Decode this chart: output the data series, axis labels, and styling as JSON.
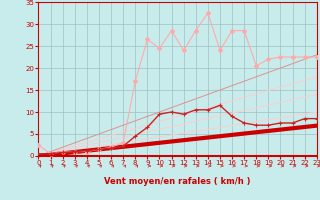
{
  "background_color": "#c8ecec",
  "grid_color": "#a0c0c0",
  "xlabel": "Vent moyen/en rafales ( km/h )",
  "xlim": [
    0,
    23
  ],
  "ylim": [
    0,
    35
  ],
  "yticks": [
    0,
    5,
    10,
    15,
    20,
    25,
    30,
    35
  ],
  "xticks": [
    0,
    1,
    2,
    3,
    4,
    5,
    6,
    7,
    8,
    9,
    10,
    11,
    12,
    13,
    14,
    15,
    16,
    17,
    18,
    19,
    20,
    21,
    22,
    23
  ],
  "x": [
    0,
    1,
    2,
    3,
    4,
    5,
    6,
    7,
    8,
    9,
    10,
    11,
    12,
    13,
    14,
    15,
    16,
    17,
    18,
    19,
    20,
    21,
    22,
    23
  ],
  "line_peak": {
    "y": [
      2.5,
      0.5,
      1.0,
      1.0,
      1.0,
      1.5,
      2.0,
      3.0,
      17.0,
      26.5,
      24.5,
      28.5,
      24.0,
      28.5,
      32.5,
      24.0,
      28.5,
      28.5,
      20.5,
      22.0,
      22.5,
      22.5,
      22.5,
      22.5
    ],
    "color": "#ffaaaa",
    "linewidth": 0.8,
    "markersize": 2.0
  },
  "line_medium": {
    "y": [
      0.5,
      0.5,
      0.8,
      1.0,
      1.2,
      1.5,
      1.8,
      2.2,
      4.5,
      6.5,
      9.5,
      10.0,
      9.5,
      10.5,
      10.5,
      11.5,
      9.0,
      7.5,
      7.0,
      7.0,
      7.5,
      7.5,
      8.5,
      8.5
    ],
    "color": "#cc2222",
    "linewidth": 1.0,
    "markersize": 3.0
  },
  "line_ref1": {
    "y": [
      0,
      0.43,
      0.87,
      1.3,
      1.74,
      2.17,
      2.61,
      3.04,
      3.48,
      3.91,
      4.35,
      4.78,
      5.22,
      5.65,
      6.09,
      6.52,
      6.96,
      7.39,
      7.83,
      8.26,
      8.7,
      9.13,
      9.57,
      10.0
    ],
    "color": "#ffcccc",
    "linewidth": 0.7
  },
  "line_ref2": {
    "y": [
      0,
      0.61,
      1.22,
      1.83,
      2.43,
      3.04,
      3.65,
      4.26,
      4.87,
      5.48,
      6.09,
      6.7,
      7.3,
      7.91,
      8.52,
      9.13,
      9.74,
      10.35,
      10.96,
      11.57,
      12.17,
      12.78,
      13.39,
      14.0
    ],
    "color": "#ffcccc",
    "linewidth": 0.7
  },
  "line_ref3": {
    "y": [
      0,
      0.78,
      1.57,
      2.35,
      3.13,
      3.91,
      4.7,
      5.48,
      6.26,
      7.04,
      7.83,
      8.61,
      9.39,
      10.17,
      10.96,
      11.74,
      12.52,
      13.3,
      14.09,
      14.87,
      15.65,
      16.43,
      17.22,
      18.0
    ],
    "color": "#ffcccc",
    "linewidth": 0.7
  },
  "line_ref4": {
    "y": [
      0,
      1.0,
      2.0,
      3.0,
      4.0,
      5.0,
      6.0,
      7.0,
      8.0,
      9.0,
      10.0,
      11.0,
      12.0,
      13.0,
      14.0,
      15.0,
      16.0,
      17.0,
      18.0,
      19.0,
      20.0,
      21.0,
      22.0,
      23.0
    ],
    "color": "#e09090",
    "linewidth": 0.7
  },
  "line_bold": {
    "y": [
      0,
      0.3,
      0.6,
      0.9,
      1.2,
      1.5,
      1.8,
      2.1,
      2.4,
      2.7,
      3.0,
      3.3,
      3.6,
      3.9,
      4.2,
      4.5,
      4.8,
      5.1,
      5.4,
      5.7,
      6.0,
      6.3,
      6.6,
      6.9
    ],
    "color": "#cc0000",
    "linewidth": 3.0
  },
  "tick_color": "#cc0000",
  "tick_fontsize": 5,
  "xlabel_fontsize": 6,
  "arrow_color": "#cc2222"
}
